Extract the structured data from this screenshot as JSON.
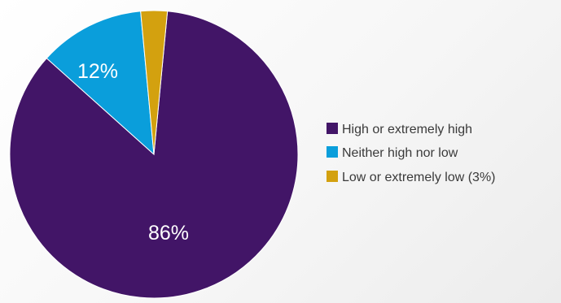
{
  "chart_data": {
    "type": "pie",
    "slices": [
      {
        "legend": "High or extremely high",
        "label": "86%",
        "value": 86,
        "color": "#421567"
      },
      {
        "legend": "Neither high nor low",
        "label": "12%",
        "value": 12,
        "color": "#0a9edb"
      },
      {
        "legend": "Low or extremely low (3%)",
        "label": "",
        "value": 3,
        "color": "#d3a10f"
      }
    ],
    "legend_position": "right"
  }
}
